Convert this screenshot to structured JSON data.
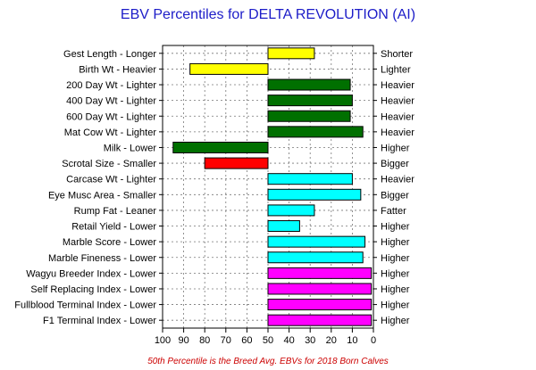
{
  "chart_data": {
    "type": "bar",
    "orientation": "horizontal-diverging",
    "title": "EBV Percentiles for DELTA REVOLUTION (AI)",
    "footnote": "50th Percentile is the Breed Avg. EBVs for 2018 Born Calves",
    "xlim": [
      100,
      0
    ],
    "xticks": [
      100,
      90,
      80,
      70,
      60,
      50,
      40,
      30,
      20,
      10,
      0
    ],
    "baseline": 50,
    "grid": true,
    "colors": {
      "title": "#1c1cc8",
      "footnote": "#cc0000",
      "yellow": "#ffff00",
      "green": "#007000",
      "red": "#ff0000",
      "cyan": "#00ffff",
      "magenta": "#ff00ff"
    },
    "traits": [
      {
        "left_label": "Gest Length - Longer",
        "right_label": "Shorter",
        "value": 28,
        "color": "yellow"
      },
      {
        "left_label": "Birth Wt - Heavier",
        "right_label": "Lighter",
        "value": 87,
        "color": "yellow"
      },
      {
        "left_label": "200 Day Wt - Lighter",
        "right_label": "Heavier",
        "value": 11,
        "color": "green"
      },
      {
        "left_label": "400 Day Wt - Lighter",
        "right_label": "Heavier",
        "value": 10,
        "color": "green"
      },
      {
        "left_label": "600 Day Wt - Lighter",
        "right_label": "Heavier",
        "value": 11,
        "color": "green"
      },
      {
        "left_label": "Mat Cow Wt - Lighter",
        "right_label": "Heavier",
        "value": 5,
        "color": "green"
      },
      {
        "left_label": "Milk - Lower",
        "right_label": "Higher",
        "value": 95,
        "color": "green"
      },
      {
        "left_label": "Scrotal Size - Smaller",
        "right_label": "Bigger",
        "value": 80,
        "color": "red"
      },
      {
        "left_label": "Carcase Wt - Lighter",
        "right_label": "Heavier",
        "value": 10,
        "color": "cyan"
      },
      {
        "left_label": "Eye Musc Area - Smaller",
        "right_label": "Bigger",
        "value": 6,
        "color": "cyan"
      },
      {
        "left_label": "Rump Fat - Leaner",
        "right_label": "Fatter",
        "value": 28,
        "color": "cyan"
      },
      {
        "left_label": "Retail Yield - Lower",
        "right_label": "Higher",
        "value": 35,
        "color": "cyan"
      },
      {
        "left_label": "Marble Score - Lower",
        "right_label": "Higher",
        "value": 4,
        "color": "cyan"
      },
      {
        "left_label": "Marble Fineness - Lower",
        "right_label": "Higher",
        "value": 5,
        "color": "cyan"
      },
      {
        "left_label": "Wagyu Breeder Index - Lower",
        "right_label": "Higher",
        "value": 1,
        "color": "magenta"
      },
      {
        "left_label": "Self Replacing Index - Lower",
        "right_label": "Higher",
        "value": 1,
        "color": "magenta"
      },
      {
        "left_label": "Fullblood Terminal Index - Lower",
        "right_label": "Higher",
        "value": 1,
        "color": "magenta"
      },
      {
        "left_label": "F1 Terminal Index - Lower",
        "right_label": "Higher",
        "value": 1,
        "color": "magenta"
      }
    ]
  }
}
